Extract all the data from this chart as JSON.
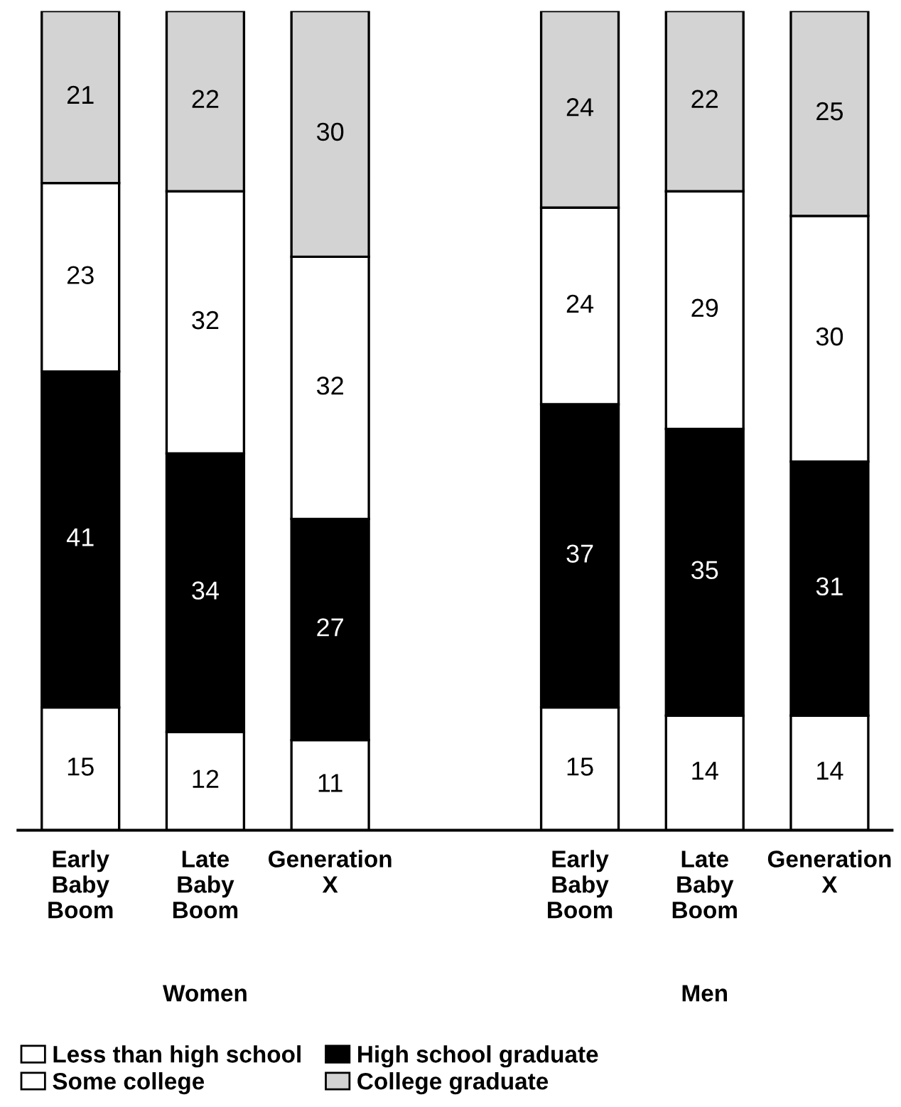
{
  "chart_data": {
    "type": "bar",
    "stacked": true,
    "data_labels": true,
    "legend": "bottom",
    "grid": false,
    "categories": [
      "Early Baby Boom",
      "Late Baby Boom",
      "Generation X",
      null,
      "Early Baby Boom",
      "Late Baby Boom",
      "Generation X"
    ],
    "annotations": [
      "Women",
      "Men"
    ],
    "series": [
      {
        "name": "Less than high school",
        "color": "#ffffff",
        "values": [
          15,
          12,
          11,
          null,
          15,
          14,
          14
        ]
      },
      {
        "name": "High school graduate",
        "color": "#000000",
        "values": [
          41,
          34,
          27,
          null,
          37,
          35,
          31
        ]
      },
      {
        "name": "Some college",
        "color": "#ffffff",
        "values": [
          23,
          32,
          32,
          null,
          24,
          29,
          30
        ]
      },
      {
        "name": "College graduate",
        "color": "#d3d3d3",
        "values": [
          21,
          22,
          30,
          null,
          24,
          22,
          25
        ]
      }
    ]
  }
}
